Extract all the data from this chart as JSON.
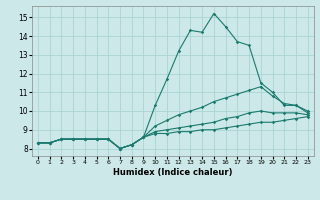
{
  "xlabel": "Humidex (Indice chaleur)",
  "ylabel": "",
  "bg_color": "#cce8e8",
  "line_color": "#1a7a6e",
  "grid_color": "#aad4d4",
  "xlim": [
    -0.5,
    23.5
  ],
  "ylim": [
    7.6,
    15.6
  ],
  "yticks": [
    8,
    9,
    10,
    11,
    12,
    13,
    14,
    15
  ],
  "xticks": [
    0,
    1,
    2,
    3,
    4,
    5,
    6,
    7,
    8,
    9,
    10,
    11,
    12,
    13,
    14,
    15,
    16,
    17,
    18,
    19,
    20,
    21,
    22,
    23
  ],
  "series": [
    [
      8.3,
      8.3,
      8.5,
      8.5,
      8.5,
      8.5,
      8.5,
      8.0,
      8.2,
      8.6,
      10.3,
      11.7,
      13.2,
      14.3,
      14.2,
      15.2,
      14.5,
      13.7,
      13.5,
      11.5,
      11.0,
      10.3,
      10.3,
      9.9
    ],
    [
      8.3,
      8.3,
      8.5,
      8.5,
      8.5,
      8.5,
      8.5,
      8.0,
      8.2,
      8.6,
      9.2,
      9.5,
      9.8,
      10.0,
      10.2,
      10.5,
      10.7,
      10.9,
      11.1,
      11.3,
      10.8,
      10.4,
      10.3,
      10.0
    ],
    [
      8.3,
      8.3,
      8.5,
      8.5,
      8.5,
      8.5,
      8.5,
      8.0,
      8.2,
      8.6,
      8.9,
      9.0,
      9.1,
      9.2,
      9.3,
      9.4,
      9.6,
      9.7,
      9.9,
      10.0,
      9.9,
      9.9,
      9.9,
      9.8
    ],
    [
      8.3,
      8.3,
      8.5,
      8.5,
      8.5,
      8.5,
      8.5,
      8.0,
      8.2,
      8.6,
      8.8,
      8.8,
      8.9,
      8.9,
      9.0,
      9.0,
      9.1,
      9.2,
      9.3,
      9.4,
      9.4,
      9.5,
      9.6,
      9.7
    ]
  ]
}
